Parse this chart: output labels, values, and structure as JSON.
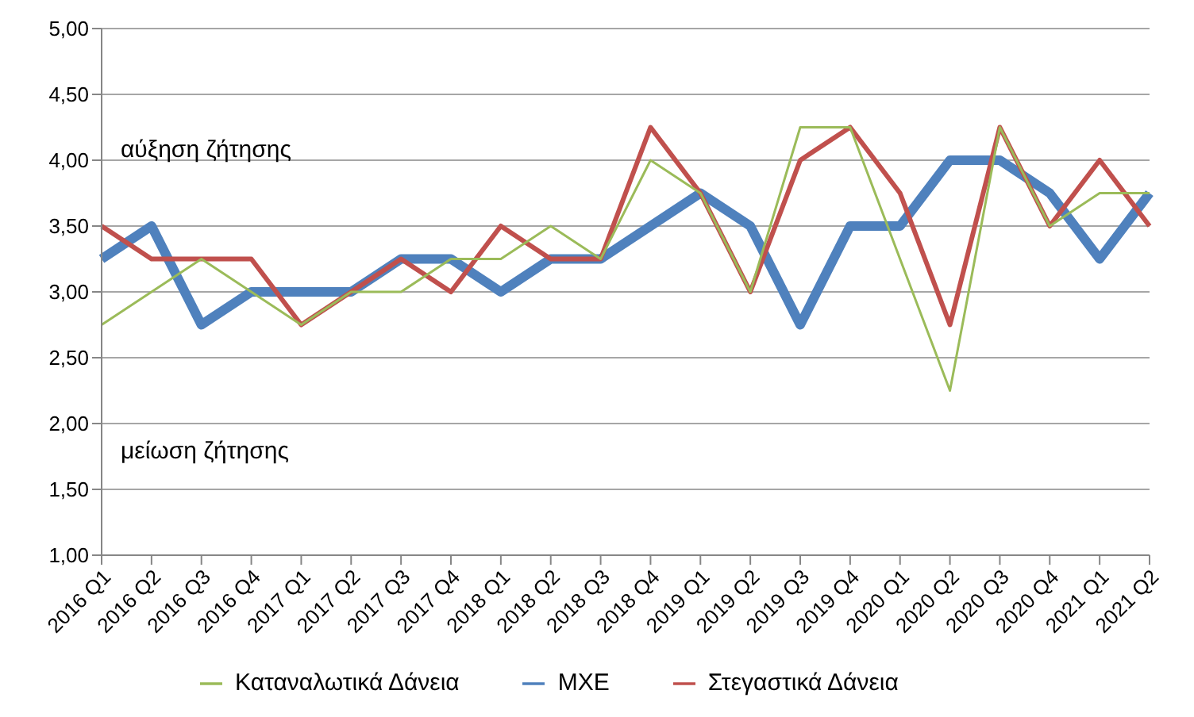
{
  "chart_data": {
    "type": "line",
    "categories": [
      "2016 Q1",
      "2016 Q2",
      "2016 Q3",
      "2016 Q4",
      "2017 Q1",
      "2017 Q2",
      "2017 Q3",
      "2017 Q4",
      "2018 Q1",
      "2018 Q2",
      "2018 Q3",
      "2018 Q4",
      "2019 Q1",
      "2019 Q2",
      "2019 Q3",
      "2019 Q4",
      "2020 Q1",
      "2020 Q2",
      "2020 Q3",
      "2020 Q4",
      "2021 Q1",
      "2021 Q2"
    ],
    "series": [
      {
        "name": "ΜΧΕ",
        "color": "#4f81bd",
        "values": [
          3.25,
          3.5,
          2.75,
          3,
          3,
          3,
          3.25,
          3.25,
          3,
          3.25,
          3.25,
          3.5,
          3.75,
          3.5,
          2.75,
          3.5,
          3.5,
          4,
          4,
          3.75,
          3.25,
          3.75
        ]
      },
      {
        "name": "Στεγαστικά Δάνεια",
        "color": "#c0504d",
        "values": [
          3.5,
          3.25,
          3.25,
          3.25,
          2.75,
          3,
          3.25,
          3,
          3.5,
          3.25,
          3.25,
          4.25,
          3.75,
          3,
          4,
          4.25,
          3.75,
          2.75,
          4.25,
          3.5,
          4,
          3.5
        ]
      },
      {
        "name": "Καταναλωτικά Δάνεια",
        "color": "#9bbb59",
        "values": [
          2.75,
          3,
          3.25,
          3,
          2.75,
          3,
          3,
          3.25,
          3.25,
          3.5,
          3.25,
          4,
          3.75,
          3,
          4.25,
          4.25,
          3.25,
          2.25,
          4.25,
          3.5,
          3.75,
          3.75
        ]
      }
    ],
    "ylim": [
      1,
      5
    ],
    "yticks": [
      {
        "value": 1,
        "label": "1,00"
      },
      {
        "value": 1.5,
        "label": "1,50"
      },
      {
        "value": 2,
        "label": "2,00"
      },
      {
        "value": 2.5,
        "label": "2,50"
      },
      {
        "value": 3,
        "label": "3,00"
      },
      {
        "value": 3.5,
        "label": "3,50"
      },
      {
        "value": 4,
        "label": "4,00"
      },
      {
        "value": 4.5,
        "label": "4,50"
      },
      {
        "value": 5,
        "label": "5,00"
      }
    ],
    "annotations": [
      "αύξηση ζήτησης",
      "μείωση ζήτησης"
    ],
    "grid": "y",
    "legend": "bottom",
    "marker": "none",
    "line_style": "solid"
  }
}
